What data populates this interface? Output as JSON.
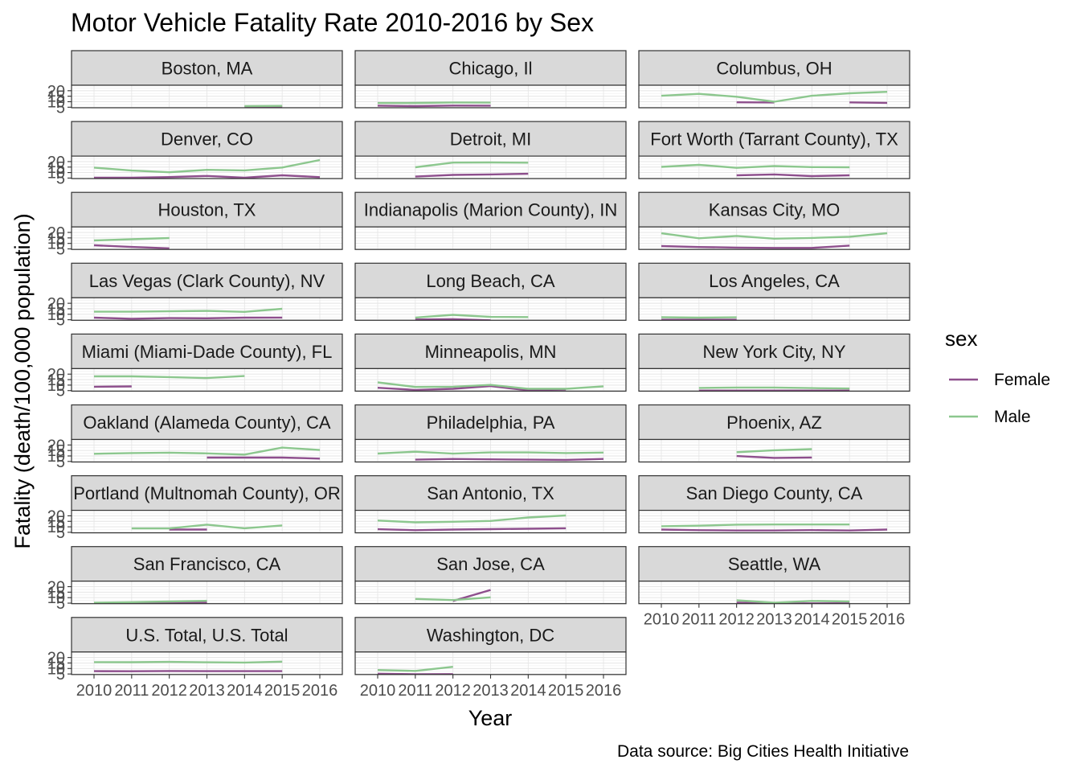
{
  "chart_data": {
    "type": "line",
    "title": "Motor Vehicle Fatality Rate 2010-2016 by Sex",
    "xlabel": "Year",
    "ylabel": "Fatality (death/100,000 population)",
    "caption": "Data source: Big Cities Health Initiative",
    "legend": {
      "title": "sex",
      "position": "right",
      "entries": [
        {
          "name": "Female",
          "color": "#8e4f8d"
        },
        {
          "name": "Male",
          "color": "#8cc78e"
        }
      ]
    },
    "x_ticks": [
      "2010",
      "2011",
      "2012",
      "2013",
      "2014",
      "2015",
      "2016"
    ],
    "y_ticks": [
      "5",
      "10",
      "15",
      "20"
    ],
    "xlim": [
      2010,
      2016
    ],
    "ylim": [
      4.5,
      25
    ],
    "grid": true,
    "facets": [
      {
        "name": "Boston, MA",
        "series": [
          {
            "sex": "Female",
            "x": [
              2014,
              2015
            ],
            "y": [
              5.0,
              5.0
            ]
          },
          {
            "sex": "Male",
            "x": [
              2014,
              2015
            ],
            "y": [
              6.0,
              6.2
            ]
          }
        ]
      },
      {
        "name": "Chicago, Il",
        "series": [
          {
            "sex": "Female",
            "x": [
              2010,
              2011,
              2012,
              2013
            ],
            "y": [
              6.4,
              6.0,
              6.5,
              6.4
            ]
          },
          {
            "sex": "Male",
            "x": [
              2010,
              2011,
              2012,
              2013
            ],
            "y": [
              8.8,
              8.9,
              9.3,
              9.2
            ]
          }
        ]
      },
      {
        "name": "Columbus, OH",
        "series": [
          {
            "sex": "Female",
            "x": [
              2012,
              2013
            ],
            "y": [
              9.5,
              9.3
            ]
          },
          {
            "sex": "Female",
            "x": [
              2015,
              2016
            ],
            "y": [
              9.4,
              9.0
            ]
          },
          {
            "sex": "Male",
            "x": [
              2010,
              2011,
              2012,
              2013,
              2014,
              2015,
              2016
            ],
            "y": [
              15.4,
              17.2,
              14.5,
              10.0,
              15.4,
              17.7,
              19.0
            ]
          }
        ]
      },
      {
        "name": "Denver, CO",
        "series": [
          {
            "sex": "Female",
            "x": [
              2010,
              2011,
              2012,
              2013,
              2014,
              2015,
              2016
            ],
            "y": [
              5.4,
              5.4,
              5.9,
              6.9,
              5.3,
              7.5,
              5.8
            ]
          },
          {
            "sex": "Male",
            "x": [
              2010,
              2011,
              2012,
              2013,
              2014,
              2015,
              2016
            ],
            "y": [
              14.5,
              11.8,
              10.3,
              12.5,
              12.0,
              14.6,
              21.4
            ]
          }
        ]
      },
      {
        "name": "Detroit, MI",
        "series": [
          {
            "sex": "Female",
            "x": [
              2011,
              2012,
              2013,
              2014
            ],
            "y": [
              6.3,
              7.9,
              8.3,
              8.9
            ]
          },
          {
            "sex": "Male",
            "x": [
              2011,
              2012,
              2013,
              2014
            ],
            "y": [
              14.8,
              19.1,
              19.2,
              19.0
            ]
          }
        ]
      },
      {
        "name": "Fort Worth (Tarrant County), TX",
        "series": [
          {
            "sex": "Female",
            "x": [
              2012,
              2013,
              2014,
              2015
            ],
            "y": [
              7.5,
              8.3,
              6.8,
              7.5
            ]
          },
          {
            "sex": "Male",
            "x": [
              2010,
              2011,
              2012,
              2013,
              2014,
              2015
            ],
            "y": [
              15.2,
              17.0,
              14.3,
              15.9,
              15.0,
              14.8
            ]
          }
        ]
      },
      {
        "name": "Houston, TX",
        "series": [
          {
            "sex": "Female",
            "x": [
              2010,
              2011,
              2012
            ],
            "y": [
              8.3,
              6.8,
              5.5
            ]
          },
          {
            "sex": "Male",
            "x": [
              2010,
              2011,
              2012
            ],
            "y": [
              12.7,
              13.8,
              14.9
            ]
          }
        ]
      },
      {
        "name": "Indianapolis (Marion County), IN",
        "series": []
      },
      {
        "name": "Kansas City, MO",
        "series": [
          {
            "sex": "Female",
            "x": [
              2010,
              2011,
              2012,
              2013,
              2014,
              2015
            ],
            "y": [
              7.6,
              6.7,
              6.2,
              5.9,
              5.9,
              8.0
            ]
          },
          {
            "sex": "Male",
            "x": [
              2010,
              2011,
              2012,
              2013,
              2014,
              2015,
              2016
            ],
            "y": [
              19.2,
              14.7,
              16.8,
              14.3,
              15.0,
              16.1,
              19.3
            ]
          }
        ]
      },
      {
        "name": "Las Vegas (Clark County), NV",
        "series": [
          {
            "sex": "Female",
            "x": [
              2010,
              2011,
              2012,
              2013,
              2014,
              2015
            ],
            "y": [
              6.9,
              5.9,
              6.5,
              6.3,
              6.9,
              7.0
            ]
          },
          {
            "sex": "Male",
            "x": [
              2010,
              2011,
              2012,
              2013,
              2014,
              2015
            ],
            "y": [
              12.3,
              12.3,
              12.7,
              13.1,
              12.2,
              15.0
            ]
          }
        ]
      },
      {
        "name": "Long Beach, CA",
        "series": [
          {
            "sex": "Female",
            "x": [
              2011,
              2012,
              2013
            ],
            "y": [
              5.2,
              5.5,
              4.5
            ]
          },
          {
            "sex": "Male",
            "x": [
              2011,
              2012,
              2013,
              2014
            ],
            "y": [
              7.0,
              9.5,
              7.6,
              7.4
            ]
          }
        ]
      },
      {
        "name": "Los Angeles, CA",
        "series": [
          {
            "sex": "Female",
            "x": [
              2010,
              2011,
              2012
            ],
            "y": [
              5.0,
              5.0,
              5.0
            ]
          },
          {
            "sex": "Male",
            "x": [
              2010,
              2011,
              2012
            ],
            "y": [
              7.3,
              6.9,
              7.2
            ]
          }
        ]
      },
      {
        "name": "Miami (Miami-Dade County), FL",
        "series": [
          {
            "sex": "Female",
            "x": [
              2010,
              2011
            ],
            "y": [
              8.5,
              8.8
            ]
          },
          {
            "sex": "Male",
            "x": [
              2010,
              2011,
              2012,
              2013,
              2014
            ],
            "y": [
              18.0,
              18.0,
              17.3,
              16.4,
              18.3
            ]
          }
        ]
      },
      {
        "name": "Minneapolis, MN",
        "series": [
          {
            "sex": "Female",
            "x": [
              2010,
              2011,
              2012,
              2013,
              2014,
              2015
            ],
            "y": [
              7.6,
              5.6,
              6.6,
              9.1,
              5.2,
              6.0
            ]
          },
          {
            "sex": "Male",
            "x": [
              2010,
              2011,
              2012,
              2013,
              2014,
              2015,
              2016
            ],
            "y": [
              12.5,
              8.3,
              8.5,
              10.2,
              6.6,
              6.6,
              8.9
            ]
          }
        ]
      },
      {
        "name": "New York City, NY",
        "series": [
          {
            "sex": "Female",
            "x": [
              2011,
              2012,
              2013,
              2014,
              2015
            ],
            "y": [
              5.0,
              5.0,
              5.0,
              5.0,
              5.0
            ]
          },
          {
            "sex": "Male",
            "x": [
              2011,
              2012,
              2013,
              2014,
              2015
            ],
            "y": [
              7.4,
              7.8,
              7.8,
              7.3,
              6.9
            ]
          }
        ]
      },
      {
        "name": "Oakland (Alameda County), CA",
        "series": [
          {
            "sex": "Female",
            "x": [
              2013,
              2014,
              2015,
              2016
            ],
            "y": [
              8.5,
              8.5,
              8.5,
              7.6
            ]
          },
          {
            "sex": "Male",
            "x": [
              2010,
              2011,
              2012,
              2013,
              2014,
              2015,
              2016
            ],
            "y": [
              12.0,
              12.6,
              13.0,
              12.3,
              11.2,
              17.6,
              15.4
            ]
          }
        ]
      },
      {
        "name": "Philadelphia, PA",
        "series": [
          {
            "sex": "Female",
            "x": [
              2011,
              2012,
              2013,
              2014,
              2015,
              2016
            ],
            "y": [
              6.6,
              7.3,
              6.9,
              6.6,
              6.4,
              7.3
            ]
          },
          {
            "sex": "Male",
            "x": [
              2010,
              2011,
              2012,
              2013,
              2014,
              2015,
              2016
            ],
            "y": [
              12.2,
              13.9,
              12.1,
              13.2,
              13.2,
              12.6,
              13.1
            ]
          }
        ]
      },
      {
        "name": "Phoenix, AZ",
        "series": [
          {
            "sex": "Female",
            "x": [
              2012,
              2013,
              2014
            ],
            "y": [
              9.9,
              8.2,
              8.6
            ]
          },
          {
            "sex": "Male",
            "x": [
              2012,
              2013,
              2014
            ],
            "y": [
              13.4,
              15.2,
              16.2
            ]
          }
        ]
      },
      {
        "name": "Portland (Multnomah County), OR",
        "series": [
          {
            "sex": "Female",
            "x": [
              2012,
              2013
            ],
            "y": [
              7.5,
              7.5
            ]
          },
          {
            "sex": "Male",
            "x": [
              2011,
              2012,
              2013,
              2014,
              2015
            ],
            "y": [
              8.5,
              8.5,
              12.0,
              8.7,
              11.2
            ]
          }
        ]
      },
      {
        "name": "San Antonio, TX",
        "series": [
          {
            "sex": "Female",
            "x": [
              2010,
              2011,
              2012,
              2013,
              2014,
              2015
            ],
            "y": [
              7.8,
              6.9,
              7.5,
              7.9,
              8.2,
              8.7
            ]
          },
          {
            "sex": "Male",
            "x": [
              2010,
              2011,
              2012,
              2013,
              2014,
              2015
            ],
            "y": [
              15.7,
              14.1,
              14.6,
              15.3,
              18.5,
              20.3
            ]
          }
        ]
      },
      {
        "name": "San Diego County, CA",
        "series": [
          {
            "sex": "Female",
            "x": [
              2010,
              2011,
              2012,
              2013,
              2014,
              2015,
              2016
            ],
            "y": [
              7.5,
              6.9,
              6.6,
              6.6,
              7.0,
              6.6,
              7.5
            ]
          },
          {
            "sex": "Male",
            "x": [
              2010,
              2011,
              2012,
              2013,
              2014,
              2015
            ],
            "y": [
              10.5,
              11.0,
              12.0,
              12.1,
              12.1,
              12.1
            ]
          }
        ]
      },
      {
        "name": "San Francisco, CA",
        "series": [
          {
            "sex": "Female",
            "x": [
              2010,
              2011,
              2012,
              2013
            ],
            "y": [
              5.2,
              5.3,
              5.5,
              5.5
            ]
          },
          {
            "sex": "Male",
            "x": [
              2010,
              2011,
              2012,
              2013
            ],
            "y": [
              5.4,
              5.9,
              6.5,
              7.1
            ]
          }
        ]
      },
      {
        "name": "San Jose, CA",
        "series": [
          {
            "sex": "Female",
            "x": [
              2012,
              2013
            ],
            "y": [
              7.0,
              17.0
            ]
          },
          {
            "sex": "Male",
            "x": [
              2011,
              2012,
              2013
            ],
            "y": [
              8.8,
              7.8,
              10.3
            ]
          }
        ]
      },
      {
        "name": "Seattle, WA",
        "series": [
          {
            "sex": "Female",
            "x": [
              2012,
              2013,
              2014,
              2015
            ],
            "y": [
              5.5,
              4.8,
              4.8,
              4.9
            ]
          },
          {
            "sex": "Male",
            "x": [
              2012,
              2013,
              2014,
              2015
            ],
            "y": [
              7.6,
              5.4,
              7.0,
              6.5
            ]
          }
        ]
      },
      {
        "name": "U.S. Total, U.S. Total",
        "series": [
          {
            "sex": "Female",
            "x": [
              2010,
              2011,
              2012,
              2013,
              2014,
              2015
            ],
            "y": [
              7.6,
              7.5,
              7.7,
              7.6,
              7.6,
              7.6
            ]
          },
          {
            "sex": "Male",
            "x": [
              2010,
              2011,
              2012,
              2013,
              2014,
              2015
            ],
            "y": [
              15.8,
              15.7,
              16.0,
              15.6,
              15.4,
              16.2
            ]
          }
        ]
      },
      {
        "name": "Washington, DC",
        "series": [
          {
            "sex": "Female",
            "x": [
              2010,
              2011,
              2012
            ],
            "y": [
              5.2,
              4.8,
              4.9
            ]
          },
          {
            "sex": "Male",
            "x": [
              2010,
              2011,
              2012
            ],
            "y": [
              8.6,
              7.8,
              11.5
            ]
          }
        ]
      }
    ]
  }
}
